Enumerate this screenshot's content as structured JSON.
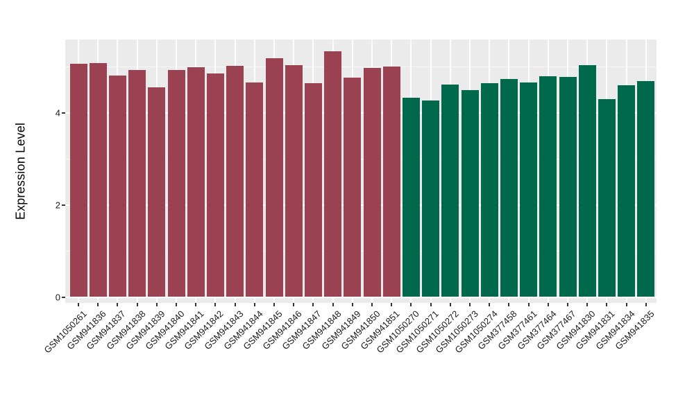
{
  "chart_data": {
    "type": "bar",
    "title": "",
    "xlabel": "",
    "ylabel": "Expression Level",
    "ylim": [
      0,
      5.55
    ],
    "yticks": [
      0,
      2,
      4
    ],
    "yticks_minor": [
      1,
      3,
      5
    ],
    "grid": "on",
    "legend": "none",
    "panel_bg": "#EBEBEB",
    "grid_color": "#FFFFFF",
    "axis_text_color": "#1a1a1a",
    "tick_mark_color": "#333333",
    "group_colors": [
      "#9A4152",
      "#00694C"
    ],
    "categories": [
      "GSM1050261",
      "GSM941836",
      "GSM941837",
      "GSM941838",
      "GSM941839",
      "GSM941840",
      "GSM941841",
      "GSM941842",
      "GSM941843",
      "GSM941844",
      "GSM941845",
      "GSM941846",
      "GSM941847",
      "GSM941848",
      "GSM941849",
      "GSM941850",
      "GSM941851",
      "GSM1050270",
      "GSM1050271",
      "GSM1050272",
      "GSM1050273",
      "GSM1050274",
      "GSM377458",
      "GSM377461",
      "GSM377464",
      "GSM377467",
      "GSM941830",
      "GSM941831",
      "GSM941834",
      "GSM941835"
    ],
    "values": [
      5.07,
      5.09,
      4.81,
      4.93,
      4.56,
      4.94,
      4.99,
      4.86,
      5.03,
      4.67,
      5.19,
      5.04,
      4.65,
      5.34,
      4.77,
      4.98,
      5.01,
      4.34,
      4.28,
      4.62,
      4.5,
      4.65,
      4.74,
      4.66,
      4.8,
      4.78,
      5.04,
      4.3,
      4.6,
      4.7
    ],
    "groups": [
      0,
      0,
      0,
      0,
      0,
      0,
      0,
      0,
      0,
      0,
      0,
      0,
      0,
      0,
      0,
      0,
      0,
      1,
      1,
      1,
      1,
      1,
      1,
      1,
      1,
      1,
      1,
      1,
      1,
      1
    ],
    "ytick_labels": [
      "0",
      "2",
      "4"
    ]
  }
}
